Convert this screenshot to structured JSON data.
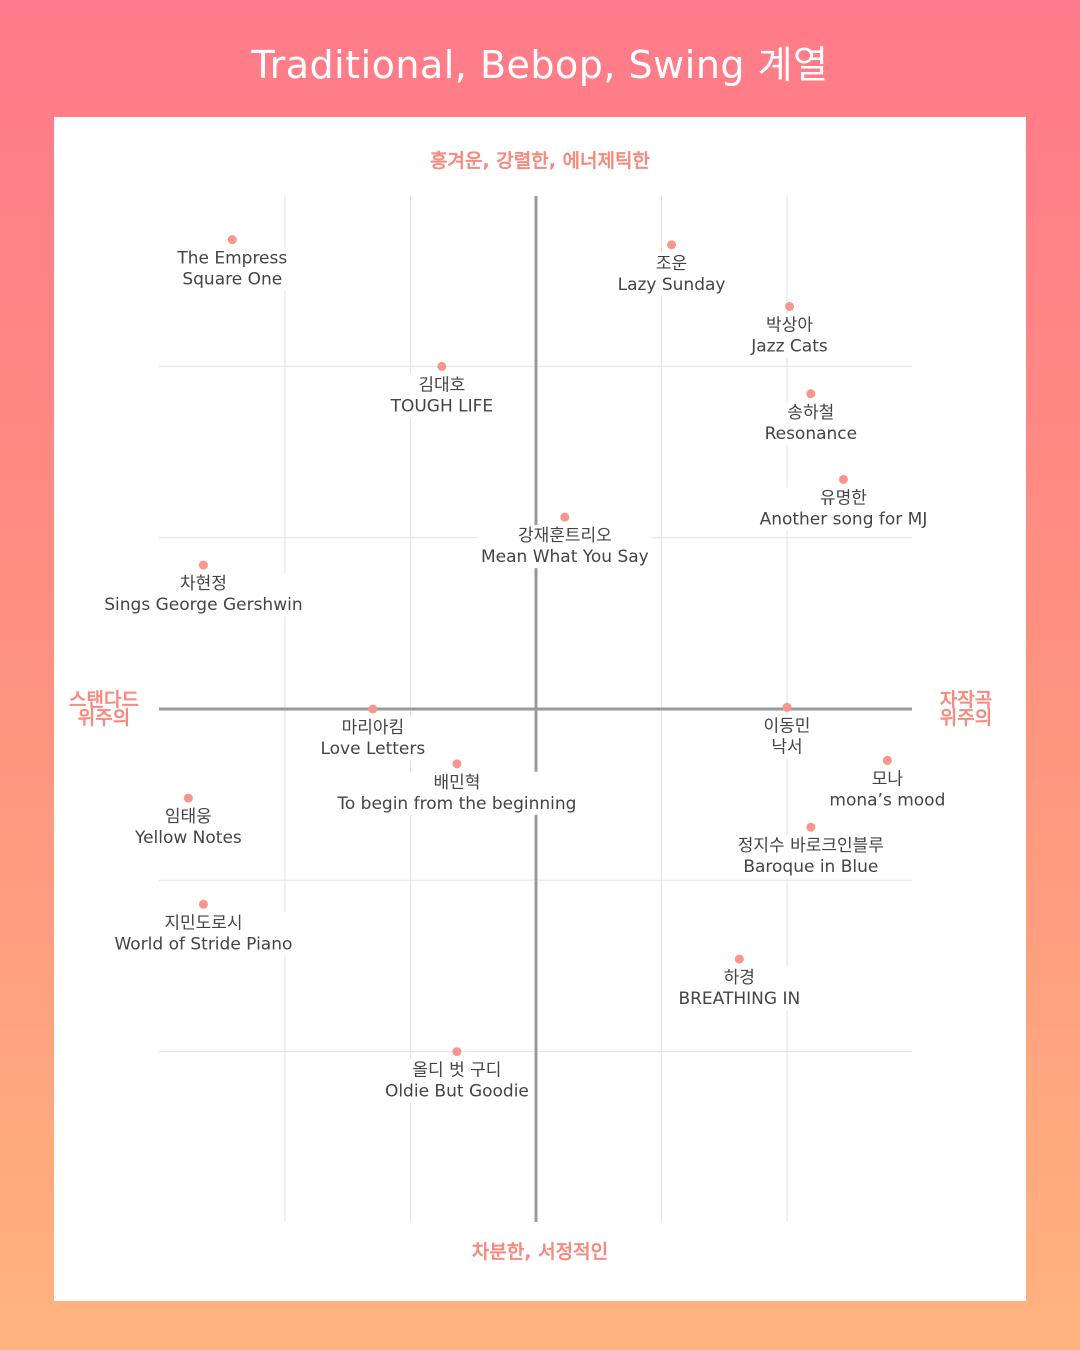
{
  "title": "Traditional, Bebop, Swing 계열",
  "colors": {
    "accent": "#f78a7e",
    "point": "#f6968c",
    "grid": "#e2e2e2",
    "axis": "#999999",
    "text": "#444444"
  },
  "chart_data": {
    "type": "scatter",
    "title": "Traditional, Bebop, Swing 계열",
    "axes": {
      "top": "흥겨운, 강렬한, 에너제틱한",
      "bottom": "차분한, 서정적인",
      "left": [
        "스탠다드",
        "위주의"
      ],
      "right": [
        "자작곡",
        "위주의"
      ]
    },
    "xlabel": "스탠다드 위주의 ↔ 자작곡 위주의",
    "ylabel": "차분한, 서정적인 ↔ 흥겨운, 강렬한, 에너제틱한",
    "xlim": [
      -3,
      3
    ],
    "ylim": [
      -3,
      3
    ],
    "grid": true,
    "points": [
      {
        "artist": "The Empress",
        "album": "Square One",
        "x": -2.42,
        "y": 2.74
      },
      {
        "artist": "조운",
        "album": "Lazy Sunday",
        "x": 1.08,
        "y": 2.71
      },
      {
        "artist": "박상아",
        "album": "Jazz Cats",
        "x": 2.02,
        "y": 2.35
      },
      {
        "artist": "김대호",
        "album": "TOUGH LIFE",
        "x": -0.75,
        "y": 2.0
      },
      {
        "artist": "송하철",
        "album": "Resonance",
        "x": 2.19,
        "y": 1.84
      },
      {
        "artist": "유명한",
        "album": "Another song for MJ",
        "x": 2.45,
        "y": 1.34
      },
      {
        "artist": "강재훈트리오",
        "album": "Mean What You Say",
        "x": 0.23,
        "y": 1.12
      },
      {
        "artist": "차현정",
        "album": "Sings George Gershwin",
        "x": -2.65,
        "y": 0.84
      },
      {
        "artist": "마리아킴",
        "album": "Love Letters",
        "x": -1.3,
        "y": 0.0
      },
      {
        "artist": "이동민",
        "album": "낙서",
        "x": 2.0,
        "y": 0.01
      },
      {
        "artist": "배민혁",
        "album": "To begin from the beginning",
        "x": -0.63,
        "y": -0.32
      },
      {
        "artist": "모나",
        "album": "mona’s mood",
        "x": 2.8,
        "y": -0.3
      },
      {
        "artist": "임태웅",
        "album": "Yellow Notes",
        "x": -2.77,
        "y": -0.52
      },
      {
        "artist": "정지수 바로크인블루",
        "album": "Baroque in Blue",
        "x": 2.19,
        "y": -0.69
      },
      {
        "artist": "지민도로시",
        "album": "World of Stride Piano",
        "x": -2.65,
        "y": -1.14
      },
      {
        "artist": "하경",
        "album": "BREATHING IN",
        "x": 1.62,
        "y": -1.46
      },
      {
        "artist": "올디 벗 구디",
        "album": "Oldie But Goodie",
        "x": -0.63,
        "y": -2.0
      }
    ]
  }
}
